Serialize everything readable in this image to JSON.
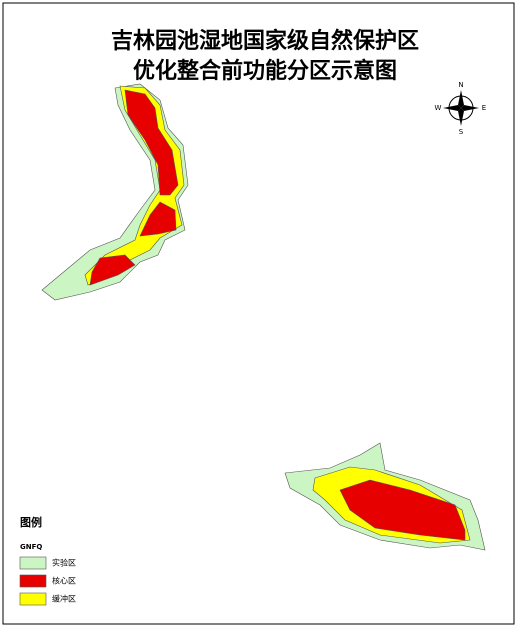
{
  "title": [
    "吉林园池湿地国家级自然保护区",
    "优化整合前功能分区示意图"
  ],
  "compass": {
    "north": "N",
    "south": "S",
    "west": "W",
    "east": "E"
  },
  "legend": {
    "title": "图例",
    "layer": "GNFQ",
    "items": [
      {
        "label": "实验区",
        "color": "#ccf5c4"
      },
      {
        "label": "核心区",
        "color": "#e60000"
      },
      {
        "label": "缓冲区",
        "color": "#ffff00"
      }
    ]
  }
}
